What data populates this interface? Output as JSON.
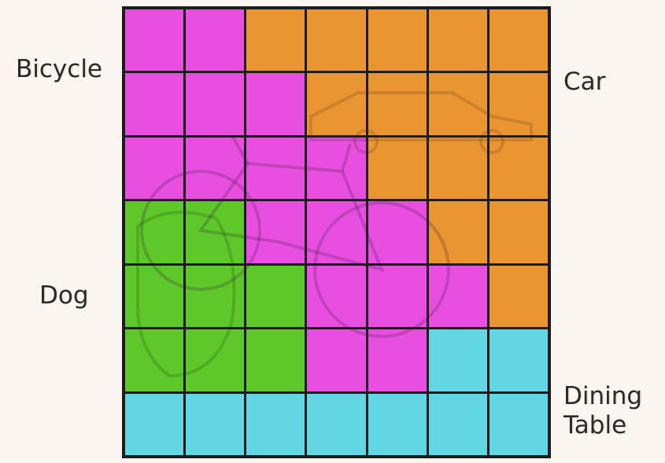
{
  "labels": {
    "bicycle": "Bicycle",
    "car": "Car",
    "dog": "Dog",
    "dining_line1": "Dining",
    "dining_line2": "Table"
  },
  "colors": {
    "bicycle": "#e84fe0",
    "car": "#e99532",
    "dog": "#5ec82a",
    "dining-table": "#63d6e4"
  },
  "grid": {
    "rows": 7,
    "cols": 7,
    "cells": [
      [
        "bicycle",
        "bicycle",
        "car",
        "car",
        "car",
        "car",
        "car"
      ],
      [
        "bicycle",
        "bicycle",
        "bicycle",
        "car",
        "car",
        "car",
        "car"
      ],
      [
        "bicycle",
        "bicycle",
        "bicycle",
        "bicycle",
        "car",
        "car",
        "car"
      ],
      [
        "dog",
        "dog",
        "bicycle",
        "bicycle",
        "bicycle",
        "car",
        "car"
      ],
      [
        "dog",
        "dog",
        "dog",
        "bicycle",
        "bicycle",
        "bicycle",
        "car"
      ],
      [
        "dog",
        "dog",
        "dog",
        "bicycle",
        "bicycle",
        "dining-table",
        "dining-table"
      ],
      [
        "dining-table",
        "dining-table",
        "dining-table",
        "dining-table",
        "dining-table",
        "dining-table",
        "dining-table"
      ]
    ]
  }
}
